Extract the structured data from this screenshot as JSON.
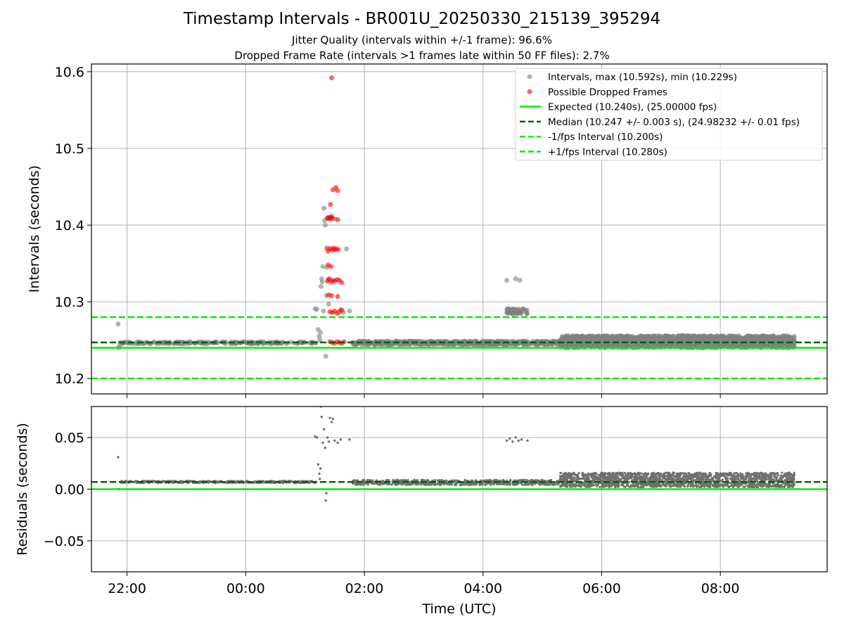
{
  "title": "Timestamp Intervals - BR001U_20250330_215139_395294",
  "subtitle_jitter": "Jitter Quality (intervals within +/-1 frame): 96.6%",
  "subtitle_dropped": "Dropped Frame Rate (intervals >1 frames late within 50 FF files): 2.7%",
  "colors": {
    "intervals": "#808080",
    "dropped": "#ff0000",
    "expected": "#00ee00",
    "median": "#006400",
    "fps_band": "#00ee00",
    "grid": "#b0b0b0"
  },
  "chart_data": [
    {
      "type": "scatter",
      "ylabel": "Intervals (seconds)",
      "ylim": [
        10.18,
        10.61
      ],
      "yticks": [
        10.2,
        10.3,
        10.4,
        10.5,
        10.6
      ],
      "ytick_labels": [
        "10.2",
        "10.3",
        "10.4",
        "10.5",
        "10.6"
      ],
      "grid": true,
      "legend_position": "top-right",
      "legend": [
        {
          "label": "Intervals, max (10.592s), min (10.229s)",
          "kind": "marker",
          "color": "#808080"
        },
        {
          "label": "Possible Dropped Frames",
          "kind": "marker",
          "color": "#ff0000"
        },
        {
          "label": "Expected (10.240s), (25.00000 fps)",
          "kind": "solid",
          "color": "#00ee00"
        },
        {
          "label": "Median (10.247 +/- 0.003 s), (24.98232 +/- 0.01 fps)",
          "kind": "dashed",
          "color": "#006400"
        },
        {
          "label": "-1/fps Interval (10.200s)",
          "kind": "dashed",
          "color": "#00ee00"
        },
        {
          "label": "+1/fps Interval (10.280s)",
          "kind": "dashed",
          "color": "#00ee00"
        }
      ],
      "hlines": [
        {
          "name": "expected",
          "y": 10.24,
          "style": "solid",
          "color": "#00ee00"
        },
        {
          "name": "median",
          "y": 10.247,
          "style": "dashed",
          "color": "#006400"
        },
        {
          "name": "minus-fps",
          "y": 10.2,
          "style": "dashed",
          "color": "#00ee00"
        },
        {
          "name": "plus-fps",
          "y": 10.28,
          "style": "dashed",
          "color": "#00ee00"
        }
      ],
      "series": [
        {
          "name": "Intervals",
          "color": "#808080",
          "points": [
            [
              21.85,
              10.271
            ],
            [
              21.86,
              10.24
            ],
            [
              21.87,
              10.242
            ],
            [
              21.88,
              10.247
            ],
            [
              23.0,
              10.247
            ],
            [
              23.5,
              10.247
            ],
            [
              0.5,
              10.247
            ],
            [
              1.0,
              10.247
            ],
            [
              1.17,
              10.291
            ],
            [
              1.2,
              10.29
            ],
            [
              1.22,
              10.264
            ],
            [
              1.24,
              10.255
            ],
            [
              1.25,
              10.25
            ],
            [
              1.26,
              10.26
            ],
            [
              1.27,
              10.32
            ],
            [
              1.28,
              10.33
            ],
            [
              1.29,
              10.326
            ],
            [
              1.3,
              10.346
            ],
            [
              1.31,
              10.288
            ],
            [
              1.32,
              10.422
            ],
            [
              1.33,
              10.406
            ],
            [
              1.34,
              10.4
            ],
            [
              1.35,
              10.229
            ],
            [
              1.36,
              10.308
            ],
            [
              1.37,
              10.345
            ],
            [
              1.38,
              10.409
            ],
            [
              1.39,
              10.329
            ],
            [
              1.4,
              10.297
            ],
            [
              1.42,
              10.41
            ],
            [
              1.45,
              10.412
            ],
            [
              1.5,
              10.408
            ],
            [
              1.6,
              10.29
            ],
            [
              1.65,
              10.286
            ],
            [
              1.7,
              10.369
            ],
            [
              1.75,
              10.288
            ],
            [
              1.8,
              10.247
            ],
            [
              2.2,
              10.247
            ],
            [
              2.6,
              10.247
            ],
            [
              3.0,
              10.247
            ],
            [
              3.4,
              10.247
            ],
            [
              3.8,
              10.247
            ],
            [
              4.4,
              10.328
            ],
            [
              4.55,
              10.33
            ],
            [
              4.62,
              10.328
            ],
            [
              4.45,
              10.288
            ],
            [
              4.5,
              10.289
            ],
            [
              4.55,
              10.287
            ],
            [
              4.6,
              10.289
            ],
            [
              4.7,
              10.288
            ],
            [
              5.5,
              10.252
            ],
            [
              6.0,
              10.255
            ],
            [
              6.5,
              10.25
            ],
            [
              7.0,
              10.252
            ],
            [
              7.5,
              10.255
            ],
            [
              8.0,
              10.252
            ],
            [
              8.5,
              10.255
            ],
            [
              9.0,
              10.252
            ],
            [
              9.25,
              10.25
            ]
          ],
          "band": {
            "x_start": 1.8,
            "x_end": 5.3,
            "y_low": 10.244,
            "y_high": 10.249
          },
          "band2": {
            "x_start": 5.3,
            "x_end": 9.25,
            "y_low": 10.24,
            "y_high": 10.256
          },
          "band3": {
            "x_start": 21.88,
            "x_end": 1.2,
            "y_low": 10.245,
            "y_high": 10.248
          },
          "band4": {
            "x_start": 4.4,
            "x_end": 4.75,
            "y_low": 10.284,
            "y_high": 10.291
          }
        },
        {
          "name": "Possible Dropped Frames",
          "color": "#ff0000",
          "points": [
            [
              1.45,
              10.592
            ],
            [
              1.47,
              10.446
            ],
            [
              1.52,
              10.449
            ],
            [
              1.55,
              10.445
            ],
            [
              1.43,
              10.427
            ],
            [
              1.38,
              10.409
            ],
            [
              1.4,
              10.41
            ],
            [
              1.42,
              10.408
            ],
            [
              1.44,
              10.41
            ],
            [
              1.46,
              10.409
            ],
            [
              1.55,
              10.407
            ],
            [
              1.37,
              10.37
            ],
            [
              1.39,
              10.366
            ],
            [
              1.42,
              10.369
            ],
            [
              1.46,
              10.368
            ],
            [
              1.48,
              10.37
            ],
            [
              1.5,
              10.368
            ],
            [
              1.53,
              10.369
            ],
            [
              1.56,
              10.368
            ],
            [
              1.39,
              10.348
            ],
            [
              1.44,
              10.346
            ],
            [
              1.38,
              10.327
            ],
            [
              1.41,
              10.33
            ],
            [
              1.44,
              10.326
            ],
            [
              1.47,
              10.328
            ],
            [
              1.5,
              10.327
            ],
            [
              1.54,
              10.329
            ],
            [
              1.58,
              10.328
            ],
            [
              1.62,
              10.325
            ],
            [
              1.4,
              10.309
            ],
            [
              1.45,
              10.308
            ],
            [
              1.55,
              10.307
            ],
            [
              1.42,
              10.287
            ],
            [
              1.46,
              10.286
            ],
            [
              1.5,
              10.288
            ],
            [
              1.54,
              10.285
            ],
            [
              1.58,
              10.287
            ],
            [
              1.62,
              10.289
            ],
            [
              1.42,
              10.248
            ],
            [
              1.46,
              10.247
            ],
            [
              1.5,
              10.246
            ],
            [
              1.54,
              10.248
            ],
            [
              1.58,
              10.247
            ],
            [
              1.62,
              10.246
            ],
            [
              1.66,
              10.248
            ]
          ]
        }
      ]
    },
    {
      "type": "scatter",
      "xlabel": "Time (UTC)",
      "ylabel": "Residuals (seconds)",
      "ylim": [
        -0.08,
        0.08
      ],
      "yticks": [
        -0.05,
        0.0,
        0.05
      ],
      "ytick_labels": [
        "−0.05",
        "0.00",
        "0.05"
      ],
      "xlim_hours": [
        21.4,
        9.8
      ],
      "xticks_hours": [
        22,
        0,
        2,
        4,
        6,
        8
      ],
      "xtick_labels": [
        "22:00",
        "00:00",
        "02:00",
        "04:00",
        "06:00",
        "08:00"
      ],
      "grid": true,
      "hlines": [
        {
          "name": "zero",
          "y": 0.0,
          "style": "solid",
          "color": "#00ee00"
        },
        {
          "name": "median-residual",
          "y": 0.007,
          "style": "dashed",
          "color": "#006400"
        }
      ],
      "series": [
        {
          "name": "Residuals",
          "color": "#707070",
          "points": [
            [
              21.85,
              0.031
            ],
            [
              21.86,
              0.0
            ],
            [
              21.9,
              0.007
            ],
            [
              1.17,
              0.051
            ],
            [
              1.2,
              0.05
            ],
            [
              1.22,
              0.024
            ],
            [
              1.24,
              0.015
            ],
            [
              1.25,
              0.01
            ],
            [
              1.26,
              0.02
            ],
            [
              1.27,
              0.08
            ],
            [
              1.28,
              0.07
            ],
            [
              1.3,
              0.045
            ],
            [
              1.32,
              0.058
            ],
            [
              1.34,
              0.04
            ],
            [
              1.35,
              -0.011
            ],
            [
              1.36,
              -0.004
            ],
            [
              1.38,
              0.05
            ],
            [
              1.4,
              0.046
            ],
            [
              1.42,
              0.069
            ],
            [
              1.45,
              0.065
            ],
            [
              1.47,
              0.068
            ],
            [
              1.5,
              0.047
            ],
            [
              1.55,
              0.045
            ],
            [
              1.6,
              0.048
            ],
            [
              1.75,
              0.048
            ],
            [
              4.4,
              0.047
            ],
            [
              4.45,
              0.049
            ],
            [
              4.5,
              0.046
            ],
            [
              4.55,
              0.05
            ],
            [
              4.6,
              0.047
            ],
            [
              4.65,
              0.048
            ],
            [
              4.75,
              0.047
            ]
          ],
          "band": {
            "x_start": 21.88,
            "x_end": 1.2,
            "y_low": 0.006,
            "y_high": 0.008
          },
          "band2": {
            "x_start": 1.8,
            "x_end": 5.3,
            "y_low": 0.004,
            "y_high": 0.009
          },
          "band3": {
            "x_start": 5.3,
            "x_end": 9.25,
            "y_low": 0.002,
            "y_high": 0.016
          }
        }
      ]
    }
  ]
}
